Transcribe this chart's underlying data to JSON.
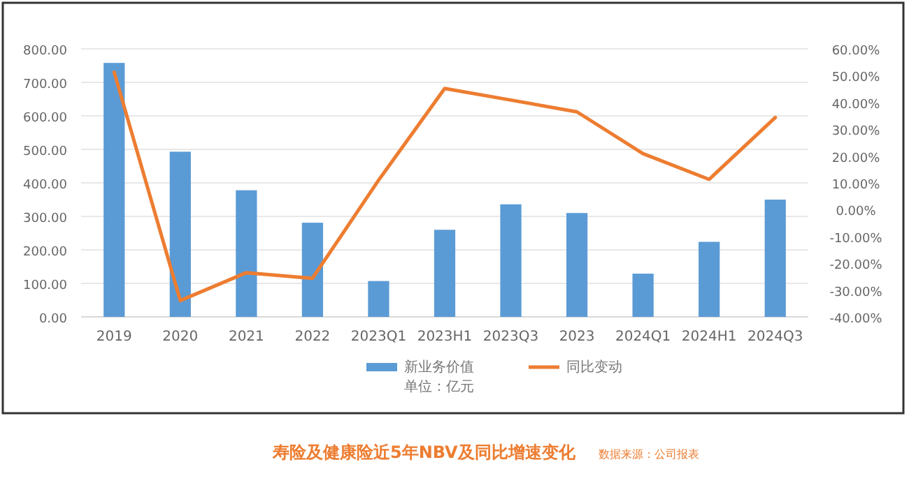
{
  "chart_data": {
    "type": "bar",
    "title": "寿险及健康险近5年NBV及同比增速变化",
    "annotations": [
      "单位：亿元",
      "数据来源：公司报表"
    ],
    "categories": [
      "2019",
      "2020",
      "2021",
      "2022",
      "2023Q1",
      "2023H1",
      "2023Q3",
      "2023",
      "2024Q1",
      "2024H1",
      "2024Q3"
    ],
    "series": [
      {
        "name": "新业务价值",
        "color": "#5b9bd5",
        "values": [
          758,
          493,
          378,
          281,
          107,
          260,
          336,
          310,
          129,
          224,
          350
        ]
      },
      {
        "name": "同比变动",
        "type": "line",
        "axis": "y2",
        "color": "#ed7d31",
        "values": [
          51.3,
          -33.9,
          -23.5,
          -25.6,
          11,
          45.2,
          40.9,
          36.5,
          20.9,
          11.3,
          34.4
        ]
      }
    ],
    "ylim": [
      0,
      800
    ],
    "yticks": [
      {
        "value": 0,
        "label": "0.00"
      },
      {
        "value": 100,
        "label": "100.00"
      },
      {
        "value": 200,
        "label": "200.00"
      },
      {
        "value": 300,
        "label": "300.00"
      },
      {
        "value": 400,
        "label": "400.00"
      },
      {
        "value": 500,
        "label": "500.00"
      },
      {
        "value": 600,
        "label": "600.00"
      },
      {
        "value": 700,
        "label": "700.00"
      },
      {
        "value": 800,
        "label": "800.00"
      }
    ],
    "y2lim": [
      -40,
      60
    ],
    "y2ticks": [
      {
        "value": -40,
        "label": "-40.00%"
      },
      {
        "value": -30,
        "label": "-30.00%"
      },
      {
        "value": -20,
        "label": "-20.00%"
      },
      {
        "value": -10,
        "label": "-10.00%"
      },
      {
        "value": 0,
        "label": "0.00%"
      },
      {
        "value": 10,
        "label": "10.00%"
      },
      {
        "value": 20,
        "label": "20.00%"
      },
      {
        "value": 30,
        "label": "30.00%"
      },
      {
        "value": 40,
        "label": "40.00%"
      },
      {
        "value": 50,
        "label": "50.00%"
      },
      {
        "value": 60,
        "label": "60.00%"
      }
    ],
    "grid": "y",
    "legend": "bottom"
  }
}
